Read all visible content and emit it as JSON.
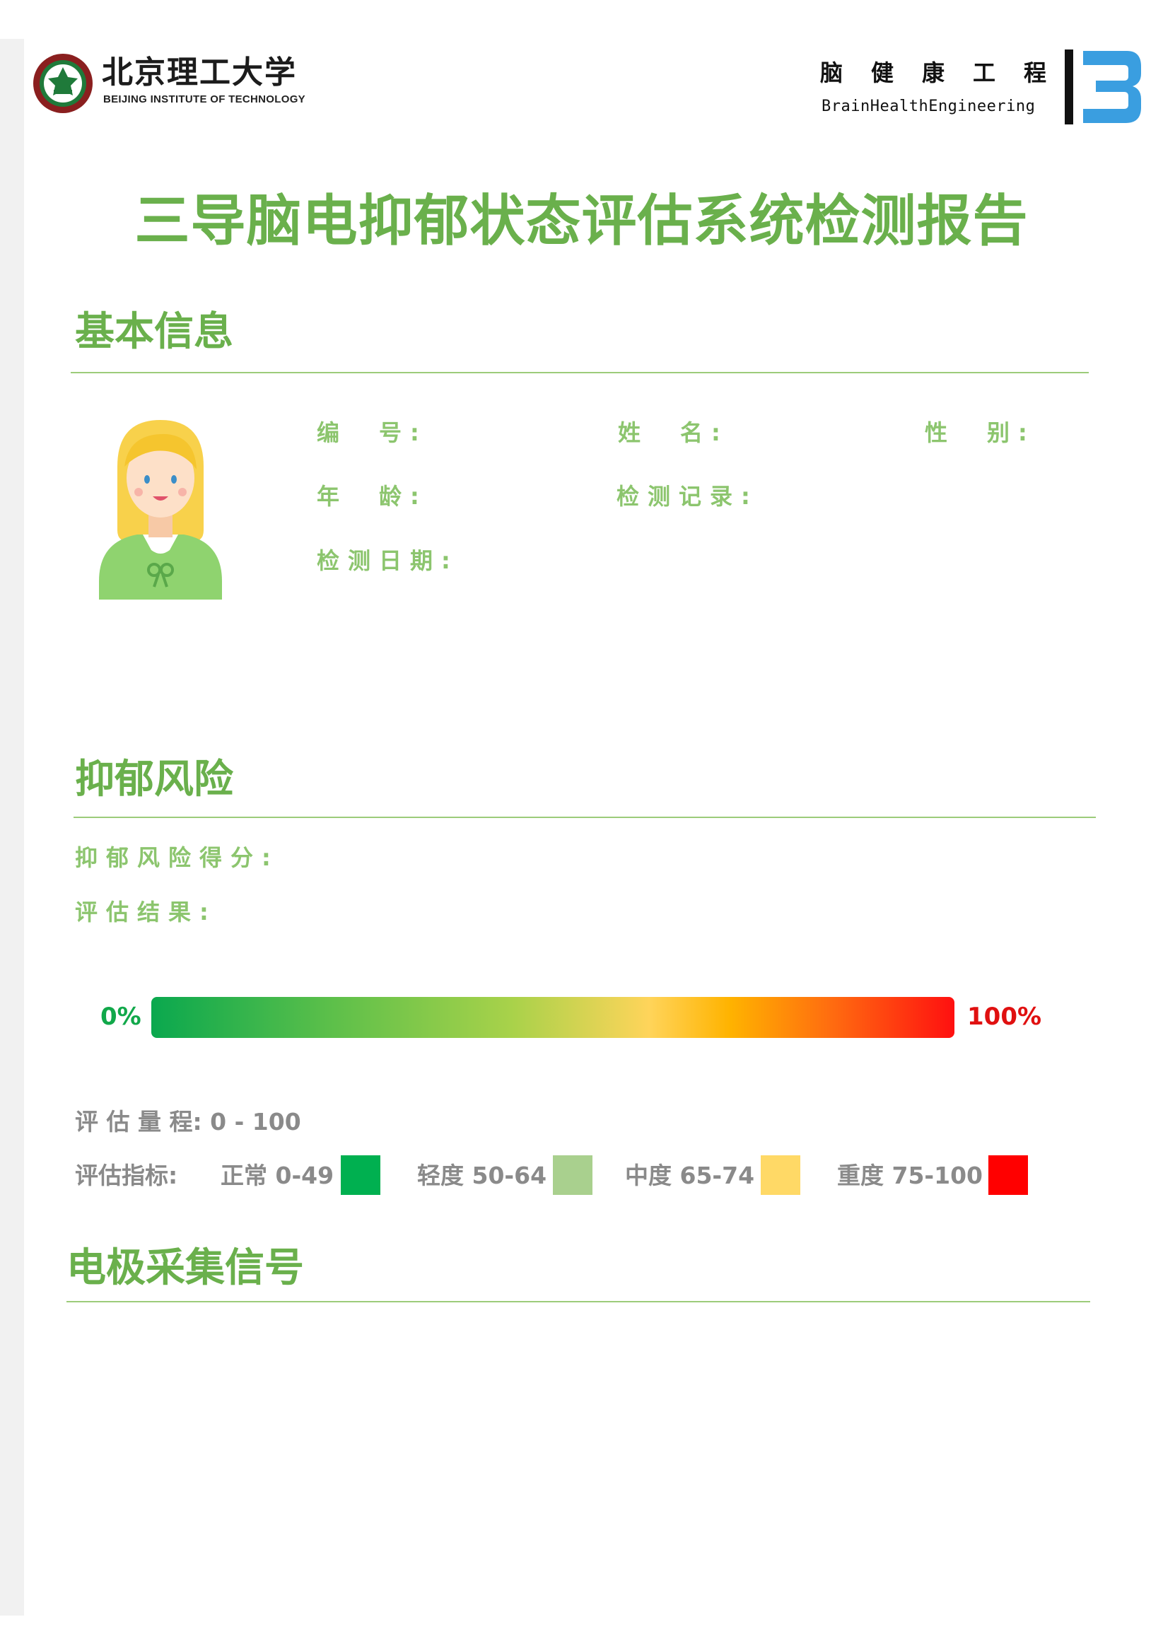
{
  "header": {
    "university_name_cn": "北京理工大学",
    "university_name_en": "BEIJING INSTITUTE OF TECHNOLOGY",
    "lab_name_cn": "脑健康工程",
    "lab_name_en": "BrainHealthEngineering"
  },
  "title": "三导脑电抑郁状态评估系统检测报告",
  "basic_info": {
    "heading": "基本信息",
    "id_label": "编　号:",
    "name_label": "姓　名:",
    "gender_label": "性　别:",
    "age_label": "年　龄:",
    "record_label": "检测记录:",
    "date_label": "检测日期:"
  },
  "risk": {
    "heading": "抑郁风险",
    "score_label": "抑郁风险得分:",
    "result_label": "评估结果:",
    "bar_min_label": "0%",
    "bar_max_label": "100%",
    "scale_label": "评 估 量 程: 0 - 100",
    "indicator_label": "评估指标:",
    "levels": [
      {
        "label": "正常 0-49",
        "color": "#00b050"
      },
      {
        "label": "轻度 50-64",
        "color": "#a9d08e"
      },
      {
        "label": "中度 65-74",
        "color": "#ffd966"
      },
      {
        "label": "重度 75-100",
        "color": "#ff0000"
      }
    ]
  },
  "electrode": {
    "heading": "电极采集信号"
  },
  "icons": {
    "university_logo": "bit-emblem-icon",
    "lab_logo": "brain-health-b-icon",
    "avatar": "female-user-avatar-icon"
  },
  "colors": {
    "accent_green": "#6ab04c",
    "label_green": "#8cc56e",
    "divider_green": "#9ccc7a",
    "lab_blue": "#3a9ee0"
  }
}
